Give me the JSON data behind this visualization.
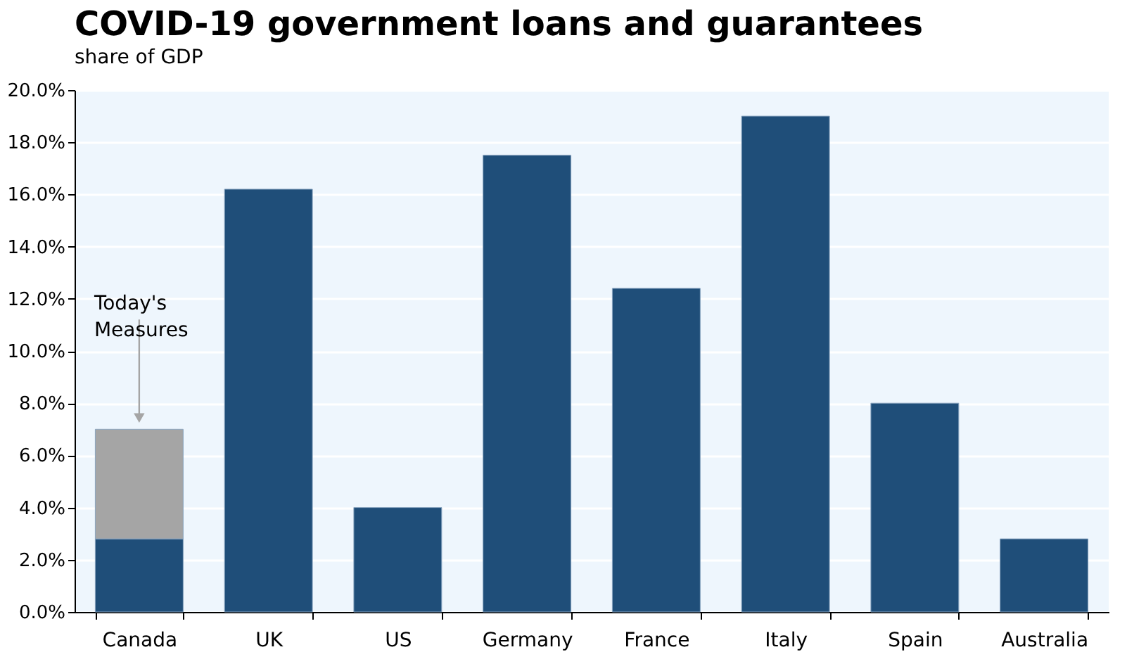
{
  "chart_data": {
    "type": "bar",
    "title": "COVID-19 government loans and guarantees",
    "subtitle": "share of GDP",
    "categories": [
      "Canada",
      "UK",
      "US",
      "Germany",
      "France",
      "Italy",
      "Spain",
      "Australia"
    ],
    "stacked": true,
    "series": [
      {
        "color": "#1f4e79",
        "values": [
          2.8,
          16.2,
          4.0,
          17.5,
          12.4,
          19.0,
          8.0,
          2.8
        ]
      },
      {
        "color": "#a5a5a5",
        "values": [
          4.2,
          null,
          null,
          null,
          null,
          null,
          null,
          null
        ]
      }
    ],
    "ylim": [
      0,
      20
    ],
    "yticks": [
      {
        "value": 0,
        "label": "0.0%"
      },
      {
        "value": 2,
        "label": "2.0%"
      },
      {
        "value": 4,
        "label": "4.0%"
      },
      {
        "value": 6,
        "label": "6.0%"
      },
      {
        "value": 8,
        "label": "8.0%"
      },
      {
        "value": 10,
        "label": "10.0%"
      },
      {
        "value": 12,
        "label": "12.0%"
      },
      {
        "value": 14,
        "label": "14.0%"
      },
      {
        "value": 16,
        "label": "16.0%"
      },
      {
        "value": 18,
        "label": "18.0%"
      },
      {
        "value": 20,
        "label": "20.0%"
      }
    ],
    "grid": "y",
    "annotations": [
      "Today's Measures"
    ]
  }
}
